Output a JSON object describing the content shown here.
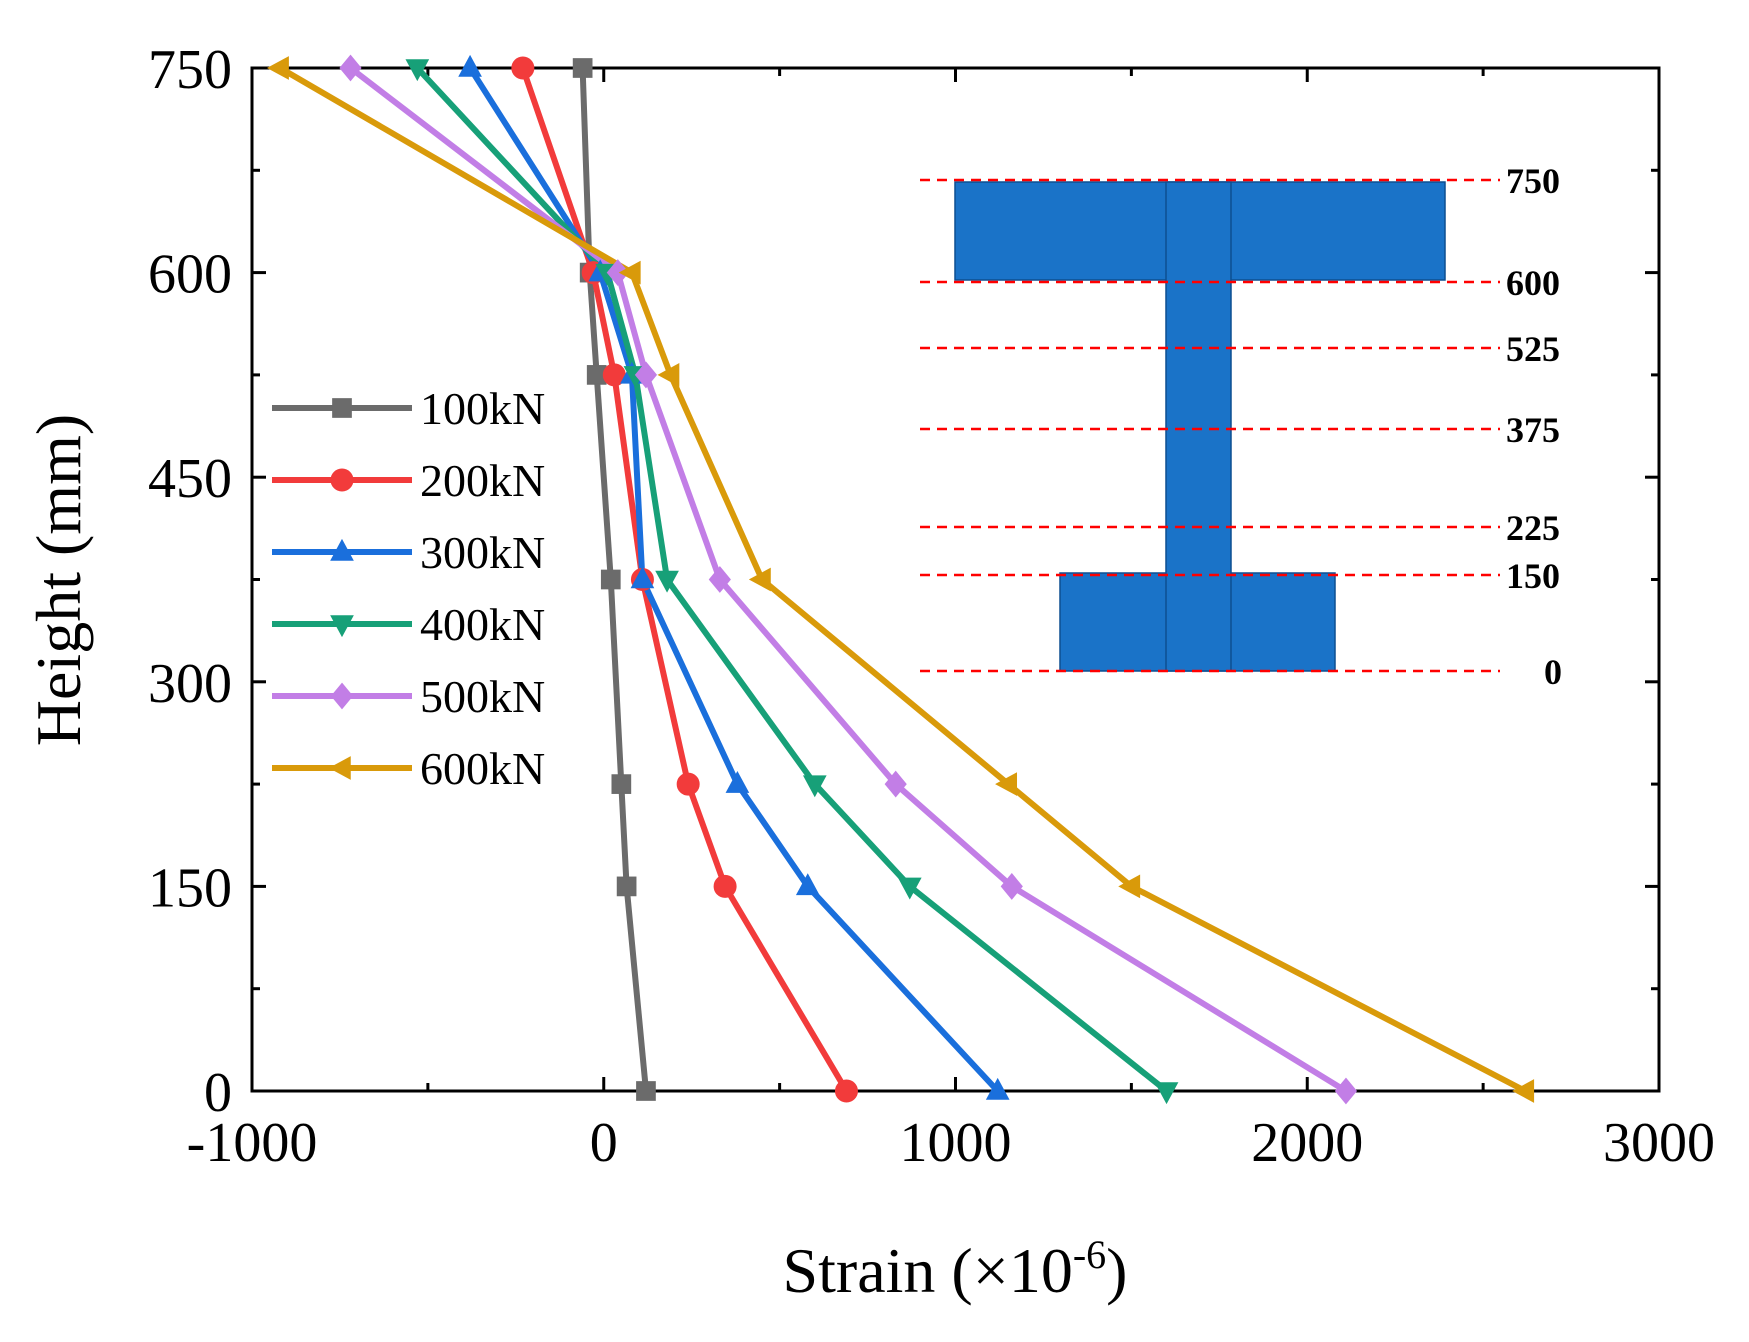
{
  "chart_data": {
    "type": "line",
    "title": "",
    "xlabel": "Strain (×10",
    "xlabel_exponent": "-6",
    "xlabel_suffix": ")",
    "ylabel": "Height (mm)",
    "xlim": [
      -1000,
      3000
    ],
    "ylim": [
      0,
      750
    ],
    "xticks": [
      -1000,
      0,
      1000,
      2000,
      3000
    ],
    "yticks": [
      0,
      150,
      300,
      450,
      600,
      750
    ],
    "grid": false,
    "legend_position": "left",
    "heights": [
      0,
      150,
      225,
      375,
      525,
      600,
      750
    ],
    "series": [
      {
        "name": "100kN",
        "color": "#6b6b6b",
        "marker": "square",
        "points": [
          [
            120,
            0
          ],
          [
            65,
            150
          ],
          [
            50,
            225
          ],
          [
            20,
            375
          ],
          [
            -20,
            525
          ],
          [
            -40,
            600
          ],
          [
            -60,
            750
          ]
        ]
      },
      {
        "name": "200kN",
        "color": "#f23b3b",
        "marker": "circle",
        "points": [
          [
            690,
            0
          ],
          [
            345,
            150
          ],
          [
            240,
            225
          ],
          [
            110,
            375
          ],
          [
            30,
            525
          ],
          [
            -30,
            600
          ],
          [
            -230,
            750
          ]
        ]
      },
      {
        "name": "300kN",
        "color": "#1a6fdc",
        "marker": "triangle-up",
        "points": [
          [
            1120,
            0
          ],
          [
            580,
            150
          ],
          [
            380,
            225
          ],
          [
            110,
            375
          ],
          [
            80,
            525
          ],
          [
            -10,
            600
          ],
          [
            -380,
            750
          ]
        ]
      },
      {
        "name": "400kN",
        "color": "#17a078",
        "marker": "triangle-down",
        "points": [
          [
            1600,
            0
          ],
          [
            870,
            150
          ],
          [
            600,
            225
          ],
          [
            180,
            375
          ],
          [
            90,
            525
          ],
          [
            10,
            600
          ],
          [
            -530,
            750
          ]
        ]
      },
      {
        "name": "500kN",
        "color": "#c27ee6",
        "marker": "diamond",
        "points": [
          [
            2110,
            0
          ],
          [
            1160,
            150
          ],
          [
            830,
            225
          ],
          [
            330,
            375
          ],
          [
            120,
            525
          ],
          [
            40,
            600
          ],
          [
            -720,
            750
          ]
        ]
      },
      {
        "name": "600kN",
        "color": "#d99a0a",
        "marker": "triangle-left",
        "points": [
          [
            2620,
            0
          ],
          [
            1500,
            150
          ],
          [
            1150,
            225
          ],
          [
            450,
            375
          ],
          [
            190,
            525
          ],
          [
            80,
            600
          ],
          [
            -920,
            750
          ]
        ]
      }
    ],
    "inset": {
      "labels": [
        "750",
        "600",
        "525",
        "375",
        "225",
        "150",
        "0"
      ],
      "fill_color": "#1a73c8",
      "line_color": "#ff0000"
    }
  }
}
